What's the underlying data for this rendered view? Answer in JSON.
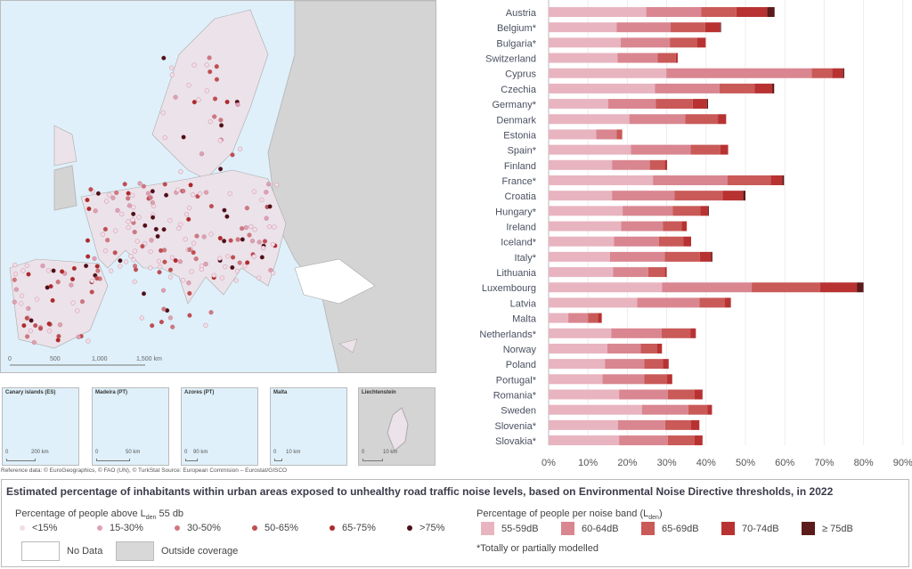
{
  "map": {
    "scale_labels": [
      "0",
      "500",
      "1,000",
      "1,500 km"
    ],
    "insets": [
      {
        "title": "Canary islands (ES)",
        "scale": [
          "0",
          "200 km"
        ]
      },
      {
        "title": "Madeira (PT)",
        "scale": [
          "0",
          "50 km"
        ]
      },
      {
        "title": "Azores (PT)",
        "scale": [
          "0",
          "90 km"
        ]
      },
      {
        "title": "Malta",
        "scale": [
          "0",
          "10 km"
        ]
      },
      {
        "title": "Liechtenstein",
        "scale": [
          "0",
          "10 km"
        ]
      }
    ],
    "reference": "Reference data: © EuroGeographics, © FAO (UN), © TurkStat Source: European Commision – Eurostat/GISCO"
  },
  "chart_data": {
    "type": "bar",
    "orientation": "horizontal",
    "stacked": true,
    "categories": [
      "Austria",
      "Belgium*",
      "Bulgaria*",
      "Switzerland",
      "Cyprus",
      "Czechia",
      "Germany*",
      "Denmark",
      "Estonia",
      "Spain*",
      "Finland",
      "France*",
      "Croatia",
      "Hungary*",
      "Ireland",
      "Iceland*",
      "Italy*",
      "Lithuania",
      "Luxembourg",
      "Latvia",
      "Malta",
      "Netherlands*",
      "Norway",
      "Poland",
      "Portugal*",
      "Romania*",
      "Sweden",
      "Slovenia*",
      "Slovakia*"
    ],
    "series": [
      {
        "name": "55-59dB",
        "color": "#e8b4c0",
        "values": [
          24.8,
          17.3,
          18.3,
          17.5,
          29.9,
          27.0,
          15.1,
          20.5,
          12.1,
          20.9,
          16.1,
          26.5,
          16.1,
          18.8,
          18.4,
          16.6,
          15.6,
          16.4,
          28.8,
          22.5,
          5.0,
          15.9,
          14.9,
          14.3,
          13.7,
          17.9,
          23.7,
          17.6,
          17.9
        ]
      },
      {
        "name": "60-64dB",
        "color": "#d98690",
        "values": [
          14.0,
          13.7,
          12.5,
          10.2,
          36.9,
          16.4,
          12.1,
          14.2,
          5.2,
          15.2,
          9.6,
          18.9,
          15.9,
          12.7,
          10.6,
          11.4,
          13.9,
          8.9,
          22.8,
          15.8,
          5.0,
          12.8,
          8.5,
          10.0,
          10.6,
          12.4,
          11.8,
          12.0,
          12.4
        ]
      },
      {
        "name": "65-69dB",
        "color": "#c95a58",
        "values": [
          8.9,
          8.8,
          6.9,
          4.6,
          5.2,
          8.9,
          9.4,
          8.3,
          1.4,
          7.5,
          3.8,
          11.0,
          12.2,
          7.0,
          4.8,
          6.2,
          8.9,
          4.2,
          17.4,
          6.5,
          2.5,
          7.3,
          4.2,
          4.7,
          5.8,
          6.8,
          4.8,
          6.6,
          6.8
        ]
      },
      {
        "name": "70-74dB",
        "color": "#b83232",
        "values": [
          7.8,
          3.8,
          2.2,
          0.5,
          2.8,
          4.5,
          3.6,
          2.1,
          0,
          2.0,
          0.6,
          3.0,
          5.2,
          2.0,
          1.3,
          2.0,
          2.9,
          0.5,
          9.3,
          1.5,
          1.0,
          1.4,
          1.2,
          1.5,
          1.3,
          2.0,
          1.2,
          2.1,
          2.0
        ]
      },
      {
        "name": "≥ 75dB",
        "color": "#5c1a1a",
        "values": [
          1.9,
          0.2,
          0,
          0,
          0.3,
          0.5,
          0.3,
          0,
          0,
          0,
          0,
          0.4,
          0.6,
          0.2,
          0,
          0,
          0.3,
          0,
          1.7,
          0,
          0,
          0,
          0,
          0,
          0,
          0,
          0,
          0,
          0
        ]
      }
    ],
    "xlim": [
      0,
      90
    ],
    "xticks": [
      "0%",
      "10%",
      "20%",
      "30%",
      "40%",
      "50%",
      "60%",
      "70%",
      "80%",
      "90%"
    ],
    "grid": true
  },
  "legend": {
    "title": "Estimated percentage of inhabitants within urban areas exposed to unhealthy road traffic noise levels, based on Environmental Noise Directive thresholds, in 2022",
    "map_heading": "Percentage of people above L",
    "map_heading_sub": "den",
    "map_heading_end": " 55 db",
    "map_classes": [
      {
        "label": "<15%",
        "color": "#f2dde8"
      },
      {
        "label": "15-30%",
        "color": "#dea2b2"
      },
      {
        "label": "30-50%",
        "color": "#d07880"
      },
      {
        "label": "50-65%",
        "color": "#c04e50"
      },
      {
        "label": "65-75%",
        "color": "#b02828"
      },
      {
        "label": ">75%",
        "color": "#4a1018"
      }
    ],
    "no_data": "No Data",
    "outside": "Outside coverage",
    "bar_heading": "Percentage of people per noise band (L",
    "bar_heading_sub": "den",
    "bar_heading_end": ")",
    "note": "*Totally or partially modelled"
  }
}
